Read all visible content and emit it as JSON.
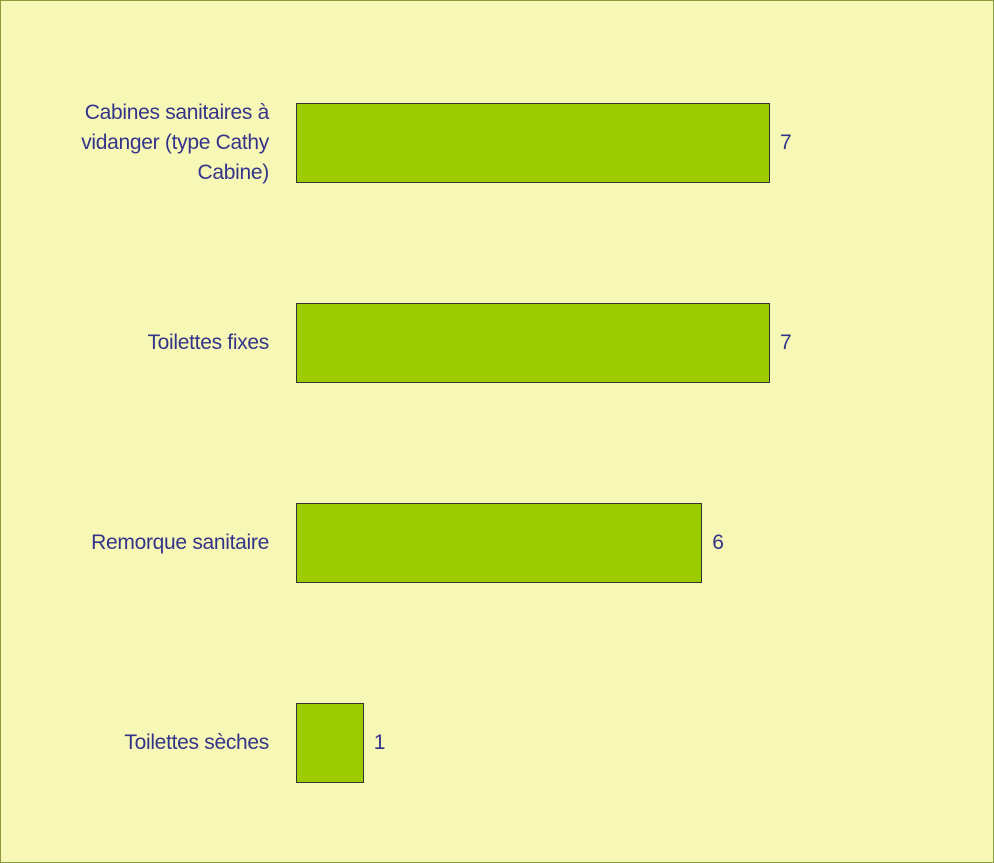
{
  "chart_data": {
    "type": "barh",
    "categories": [
      "Cabines sanitaires à vidanger (type Cathy Cabine)",
      "Toilettes fixes",
      "Remorque sanitaire",
      "Toilettes sèches"
    ],
    "values": [
      7,
      7,
      6,
      1
    ],
    "color": "#9ccc00"
  }
}
